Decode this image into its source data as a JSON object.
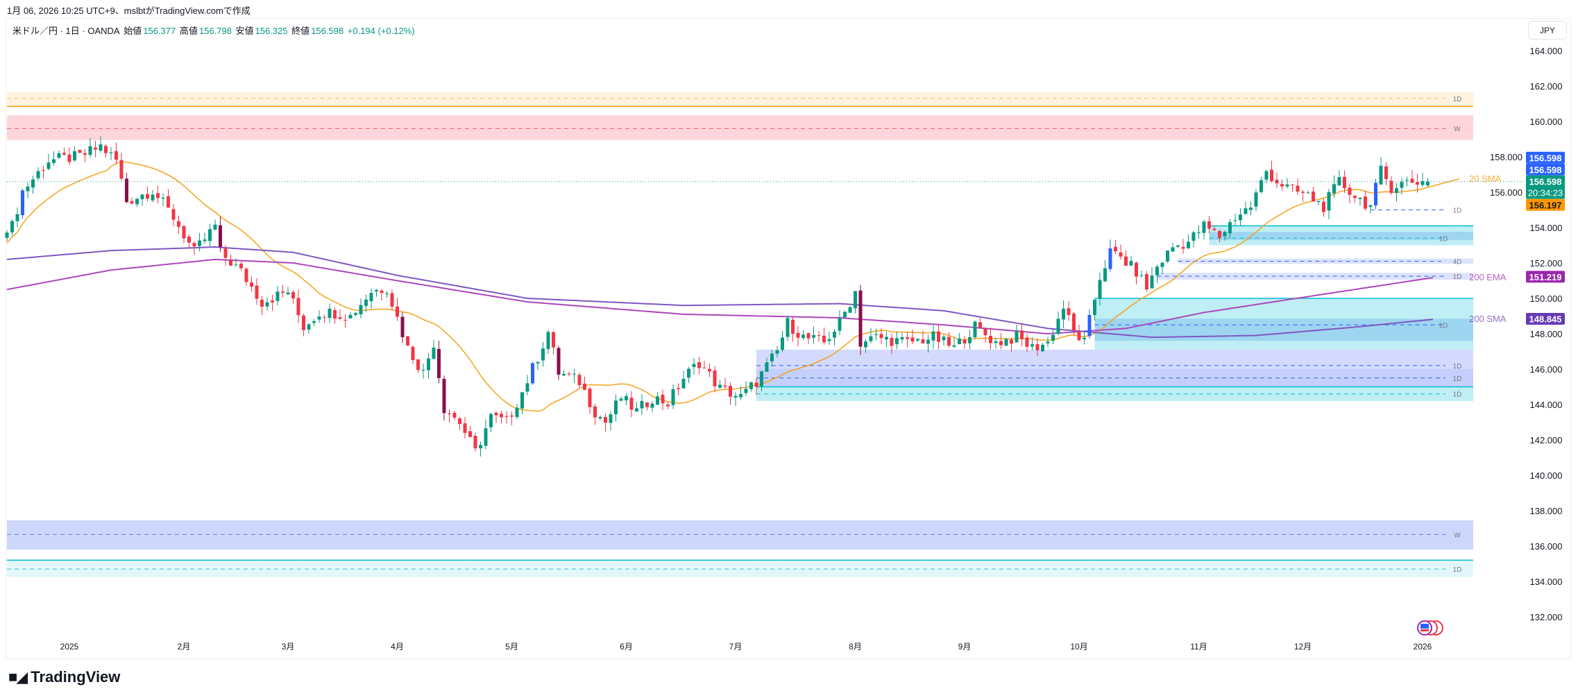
{
  "snapshot_caption": "1月 06, 2026 10:25 UTC+9、mslbtがTradingView.comで作成",
  "legend": {
    "symbol": "米ドル／円 · 1日 · OANDA",
    "open_label": "始値",
    "open": "156.377",
    "high_label": "高値",
    "high": "156.798",
    "low_label": "安値",
    "low": "156.325",
    "close_label": "終値",
    "close": "156.598",
    "change": "+0.194 (+0.12%)"
  },
  "currency_button": "JPY",
  "footer_logo": "TradingView",
  "colors": {
    "up": "#089981",
    "down": "#f23645",
    "up_strong": "#2962ff",
    "down_strong": "#880e4f",
    "sma20": "#f7a21b",
    "ema200": "#ab47bc",
    "sma200": "#7e57c2",
    "grid": "#f0f3fa"
  },
  "chart_data": {
    "type": "candlestick",
    "title": "USD/JPY 1D OANDA",
    "ylim": [
      131,
      165
    ],
    "y_ticks": [
      "164.000",
      "162.000",
      "160.000",
      "158.000",
      "156.000",
      "154.000",
      "152.000",
      "150.000",
      "148.000",
      "146.000",
      "144.000",
      "142.000",
      "140.000",
      "138.000",
      "136.000",
      "134.000",
      "132.000"
    ],
    "x_ticks": [
      {
        "label": "2025",
        "index": 12
      },
      {
        "label": "2月",
        "index": 34
      },
      {
        "label": "3月",
        "index": 54
      },
      {
        "label": "4月",
        "index": 75
      },
      {
        "label": "5月",
        "index": 97
      },
      {
        "label": "6月",
        "index": 119
      },
      {
        "label": "7月",
        "index": 140
      },
      {
        "label": "8月",
        "index": 163
      },
      {
        "label": "9月",
        "index": 184
      },
      {
        "label": "10月",
        "index": 206
      },
      {
        "label": "11月",
        "index": 229
      },
      {
        "label": "12月",
        "index": 249
      },
      {
        "label": "2026",
        "index": 272
      }
    ],
    "close_keypoints": [
      [
        1,
        154.07
      ],
      [
        3,
        156.06
      ],
      [
        8,
        157.8
      ],
      [
        14,
        158.0
      ],
      [
        18,
        158.6
      ],
      [
        21,
        157.8
      ],
      [
        23,
        155.5
      ],
      [
        28,
        156.1
      ],
      [
        32,
        154.6
      ],
      [
        36,
        152.6
      ],
      [
        40,
        154.1
      ],
      [
        41,
        152.6
      ],
      [
        45,
        151.5
      ],
      [
        49,
        149.8
      ],
      [
        54,
        150.4
      ],
      [
        57,
        148.4
      ],
      [
        60,
        149.2
      ],
      [
        63,
        149.2
      ],
      [
        66,
        149.0
      ],
      [
        70,
        150.4
      ],
      [
        73,
        150.6
      ],
      [
        77,
        147.2
      ],
      [
        80,
        145.8
      ],
      [
        82,
        147.5
      ],
      [
        84,
        143.8
      ],
      [
        87,
        143.0
      ],
      [
        90,
        141.3
      ],
      [
        93,
        143.3
      ],
      [
        96,
        143.0
      ],
      [
        99,
        144.7
      ],
      [
        102,
        146.7
      ],
      [
        104,
        148.1
      ],
      [
        106,
        145.8
      ],
      [
        110,
        145.3
      ],
      [
        113,
        143.6
      ],
      [
        115,
        143.0
      ],
      [
        118,
        144.4
      ],
      [
        121,
        143.6
      ],
      [
        124,
        144.4
      ],
      [
        127,
        144.1
      ],
      [
        130,
        145.5
      ],
      [
        133,
        146.4
      ],
      [
        137,
        144.9
      ],
      [
        141,
        144.4
      ],
      [
        144,
        145.3
      ],
      [
        148,
        147.0
      ],
      [
        150,
        148.6
      ],
      [
        153,
        147.8
      ],
      [
        157,
        147.5
      ],
      [
        160,
        148.6
      ],
      [
        163,
        150.4
      ],
      [
        164,
        147.5
      ],
      [
        167,
        147.8
      ],
      [
        173,
        147.5
      ],
      [
        178,
        147.8
      ],
      [
        182,
        147.2
      ],
      [
        186,
        148.4
      ],
      [
        190,
        147.5
      ],
      [
        194,
        147.8
      ],
      [
        197,
        147.2
      ],
      [
        200,
        147.5
      ],
      [
        203,
        149.5
      ],
      [
        205,
        148.1
      ],
      [
        207,
        147.5
      ],
      [
        210,
        151.2
      ],
      [
        212,
        152.6
      ],
      [
        214,
        152.3
      ],
      [
        217,
        151.5
      ],
      [
        219,
        150.6
      ],
      [
        221,
        151.8
      ],
      [
        224,
        152.9
      ],
      [
        227,
        153.2
      ],
      [
        230,
        154.1
      ],
      [
        233,
        153.5
      ],
      [
        236,
        154.6
      ],
      [
        239,
        155.2
      ],
      [
        242,
        157.2
      ],
      [
        244,
        156.6
      ],
      [
        247,
        156.1
      ],
      [
        250,
        155.8
      ],
      [
        253,
        155.2
      ],
      [
        256,
        156.6
      ],
      [
        259,
        155.8
      ],
      [
        262,
        155.2
      ],
      [
        264,
        157.2
      ],
      [
        266,
        156.3
      ],
      [
        269,
        156.6
      ],
      [
        273,
        156.598
      ]
    ],
    "last_candle": {
      "open": 156.377,
      "high": 156.798,
      "low": 156.325,
      "close": 156.598
    },
    "series": [
      {
        "name": "20 SMA",
        "label": "20 SMA",
        "last": "156.197",
        "computed_from": "close"
      },
      {
        "name": "200 EMA",
        "label": "200 EMA",
        "last": "151.219",
        "keypoints": [
          [
            0,
            150.5
          ],
          [
            20,
            151.6
          ],
          [
            40,
            152.2
          ],
          [
            55,
            152.0
          ],
          [
            75,
            151.0
          ],
          [
            100,
            149.8
          ],
          [
            130,
            149.1
          ],
          [
            160,
            148.9
          ],
          [
            180,
            148.5
          ],
          [
            200,
            148.0
          ],
          [
            215,
            148.3
          ],
          [
            230,
            149.2
          ],
          [
            250,
            150.1
          ],
          [
            275,
            151.219
          ]
        ]
      },
      {
        "name": "200 SMA",
        "label": "200 SMA",
        "last": "148.845",
        "keypoints": [
          [
            0,
            152.2
          ],
          [
            20,
            152.7
          ],
          [
            40,
            152.9
          ],
          [
            55,
            152.6
          ],
          [
            75,
            151.3
          ],
          [
            100,
            150.0
          ],
          [
            130,
            149.6
          ],
          [
            160,
            149.7
          ],
          [
            180,
            149.3
          ],
          [
            200,
            148.3
          ],
          [
            220,
            147.8
          ],
          [
            240,
            147.9
          ],
          [
            260,
            148.4
          ],
          [
            275,
            148.845
          ]
        ]
      }
    ],
    "price_labels": [
      {
        "text": "156.598",
        "color": "#2962ff",
        "price": 156.95
      },
      {
        "text": "156.598",
        "color": "#2962ff",
        "price": 156.3
      },
      {
        "text": "156.598",
        "sub": "20:34:23",
        "color": "#089981",
        "price": 155.4
      },
      {
        "text": "156.197",
        "color": "#ff9800",
        "price": 154.75,
        "dark": true
      },
      {
        "text": "151.219",
        "color": "#9c27b0",
        "price": 151.219
      },
      {
        "text": "148.845",
        "color": "#673ab7",
        "price": 148.845
      }
    ],
    "zones": [
      {
        "from": 161.65,
        "to": 160.85,
        "start": 0,
        "fill": "#fff3e0",
        "dash": 161.3,
        "dash_color": "#ffb74d",
        "solid": 160.85,
        "solid_color": "#ff9800",
        "label": "1D"
      },
      {
        "from": 160.35,
        "to": 158.95,
        "start": 0,
        "fill": "#fdd5da",
        "dash": 159.6,
        "dash_color": "#f7525f",
        "label": "W"
      },
      {
        "from": 154.1,
        "to": 153.0,
        "start": 231,
        "fill": "#bfeef4",
        "solid": 154.1,
        "solid_color": "#00bcd4",
        "dash": 153.65,
        "dash_color": "#2962ff",
        "label": "1D"
      },
      {
        "from": 153.75,
        "to": 153.3,
        "start": 231,
        "fill": "#9ed5f0",
        "dash": 153.4,
        "dash_color": "#00bcd4",
        "label": "1D"
      },
      {
        "from": 152.25,
        "to": 151.95,
        "start": 225,
        "fill": "#dde3fc",
        "dash": 152.1,
        "dash_color": "#2962ff",
        "label": "4D"
      },
      {
        "from": 151.45,
        "to": 151.05,
        "start": 221,
        "fill": "#dde3fc",
        "dash": 151.25,
        "dash_color": "#2962ff",
        "label": "1D"
      },
      {
        "from": 155.0,
        "to": 155.0,
        "start": 262,
        "fill": "none",
        "dash": 155.0,
        "dash_color": "#2962ff",
        "label": "1D"
      },
      {
        "from": 150.0,
        "to": 146.7,
        "start": 209,
        "fill": "#bfeef4",
        "solid": 150.0,
        "solid_color": "#00bcd4",
        "dash": 148.3,
        "dash_color": "#00bcd4",
        "label": "1D"
      },
      {
        "from": 148.85,
        "to": 147.6,
        "start": 209,
        "fill": "#9ed5f0",
        "dash": 148.5,
        "dash_color": "#2962ff",
        "label": "1D"
      },
      {
        "from": 147.1,
        "to": 145.0,
        "start": 144,
        "fill": "#d3dafd",
        "dash": 146.2,
        "dash_color": "#2962ff",
        "label": "1D"
      },
      {
        "from": 146.0,
        "to": 145.0,
        "start": 144,
        "fill": "#c5cffb",
        "dash": 145.5,
        "dash_color": "#2962ff",
        "label": "1D"
      },
      {
        "from": 145.0,
        "to": 144.2,
        "start": 144,
        "fill": "#bfeef4",
        "solid": 145.0,
        "solid_color": "#00bcd4",
        "dash": 144.6,
        "dash_color": "#00bcd4",
        "label": "1D"
      },
      {
        "from": 137.45,
        "to": 135.8,
        "start": 0,
        "fill": "#cdd6fb",
        "dash": 136.65,
        "dash_color": "#5b7cf7",
        "label": "W"
      },
      {
        "from": 135.2,
        "to": 134.25,
        "start": 0,
        "fill": "#e3f7fa",
        "solid": 135.2,
        "solid_color": "#00bcd4",
        "dash": 134.7,
        "dash_color": "#26c6da",
        "label": "1D"
      }
    ]
  }
}
